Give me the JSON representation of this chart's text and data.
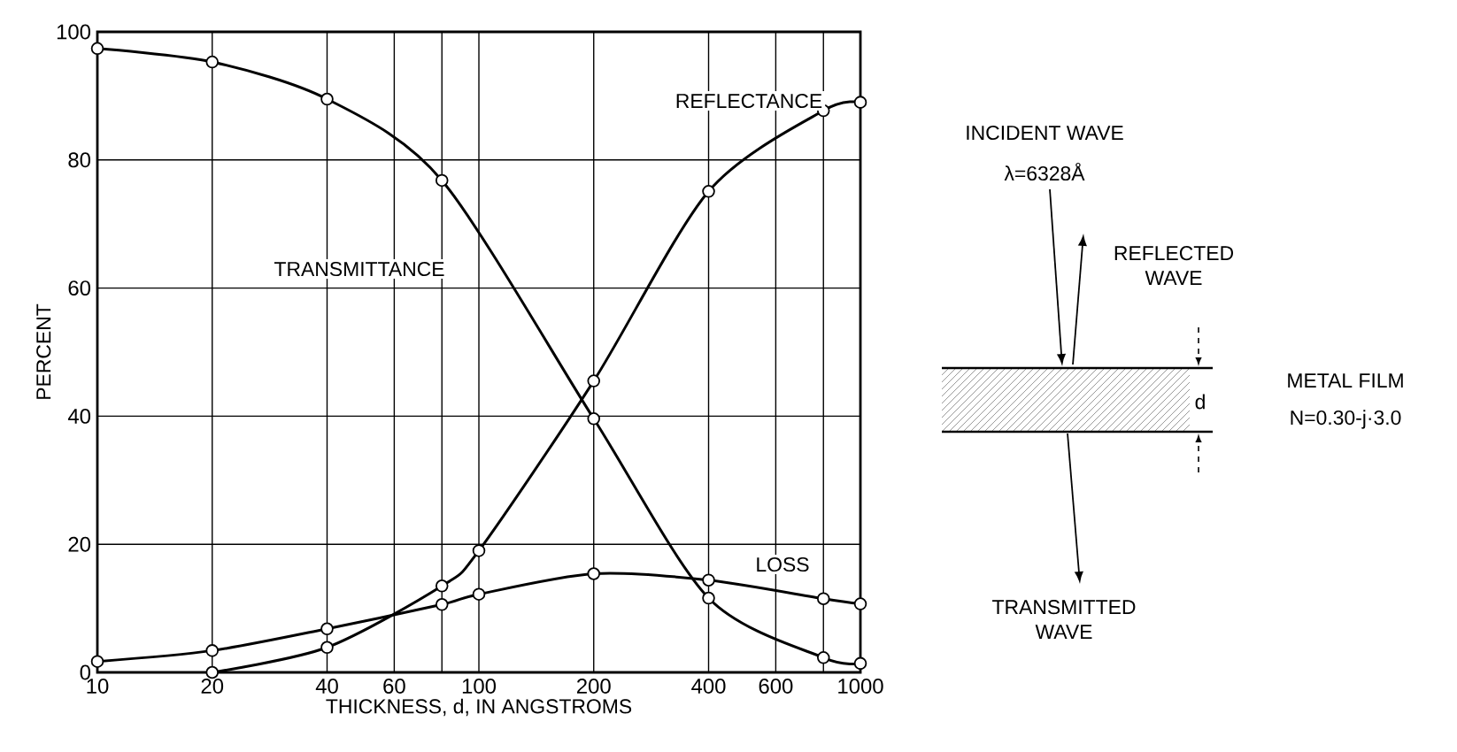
{
  "chart_data": {
    "type": "line",
    "xlabel": "THICKNESS, d, IN ANGSTROMS",
    "ylabel": "PERCENT",
    "log": "x",
    "grid": true,
    "marker": "circle",
    "line_style": "solid",
    "xlim": [
      10,
      1000
    ],
    "ylim": [
      0,
      100
    ],
    "xticks": [
      10,
      20,
      40,
      60,
      {
        "value": 80,
        "label": null
      },
      100,
      200,
      400,
      600,
      {
        "value": 800,
        "label": null
      },
      1000
    ],
    "yticks": [
      0,
      20,
      40,
      60,
      80,
      100
    ],
    "series": [
      {
        "name": "TRANSMITTANCE",
        "color": "#000000",
        "x": [
          10,
          20,
          40,
          80,
          200,
          400,
          800,
          1000
        ],
        "values": [
          97.4,
          95.3,
          89.5,
          76.8,
          39.6,
          11.6,
          2.3,
          1.4
        ]
      },
      {
        "name": "REFLECTANCE",
        "color": "#000000",
        "x": [
          20,
          40,
          80,
          100,
          200,
          400,
          800,
          1000
        ],
        "values": [
          0,
          3.9,
          13.5,
          19,
          45.5,
          75.1,
          87.7,
          89
        ]
      },
      {
        "name": "LOSS",
        "color": "#000000",
        "x": [
          10,
          20,
          40,
          80,
          100,
          200,
          400,
          800,
          1000
        ],
        "values": [
          1.7,
          3.4,
          6.8,
          10.6,
          12.2,
          15.4,
          14.4,
          11.5,
          10.7
        ]
      }
    ],
    "annotations": [
      "INCIDENT WAVE",
      "λ=6328Å",
      "REFLECTED WAVE",
      "d",
      "METAL FILM",
      "N=0.30-j·3.0",
      "TRANSMITTED WAVE"
    ]
  }
}
